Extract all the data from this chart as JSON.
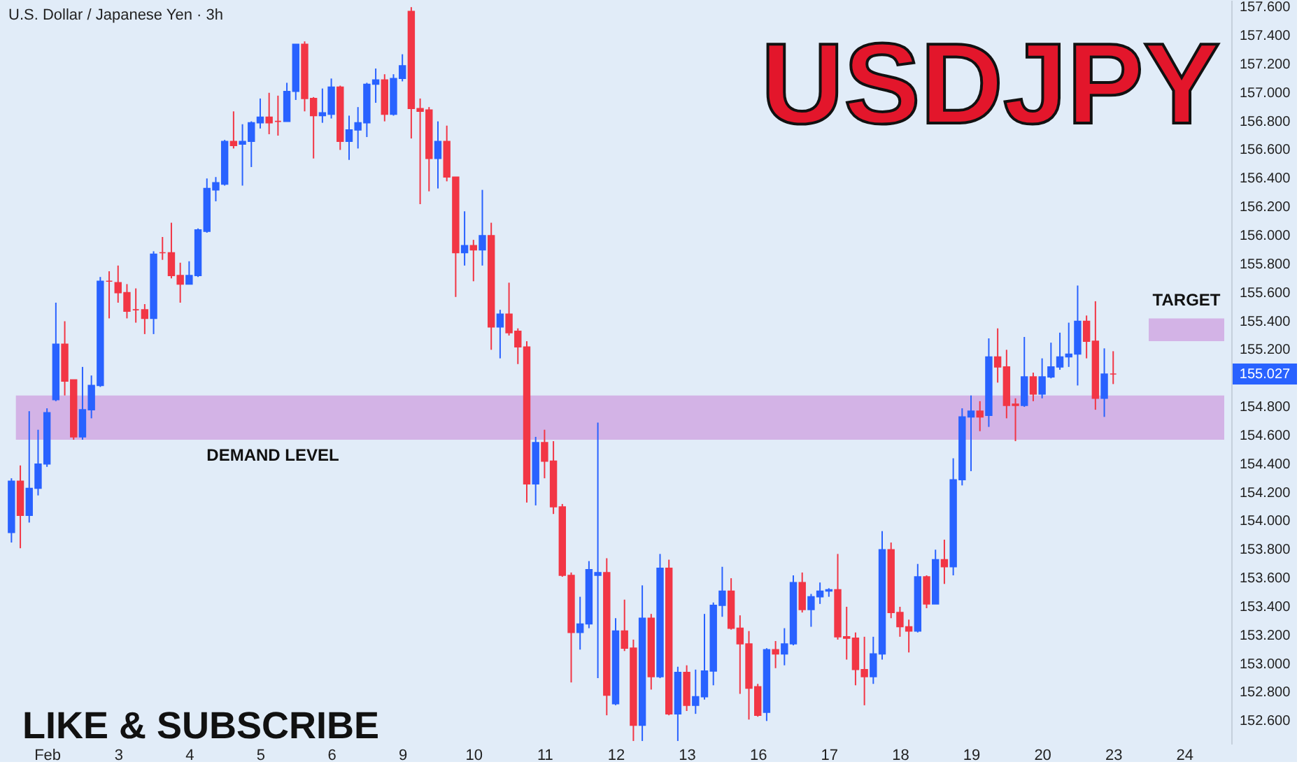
{
  "chart_data": {
    "type": "candlestick",
    "title": "USDJPY",
    "subtitle": "U.S. Dollar / Japanese Yen · 3h",
    "categories": [
      null,
      null,
      null,
      null,
      "Feb",
      null,
      null,
      null,
      null,
      null,
      null,
      null,
      "3",
      null,
      null,
      null,
      null,
      null,
      null,
      null,
      "4",
      null,
      null,
      null,
      null,
      null,
      null,
      null,
      "5",
      null,
      null,
      null,
      null,
      null,
      null,
      null,
      "6",
      null,
      null,
      null,
      null,
      null,
      null,
      null,
      "9",
      null,
      null,
      null,
      null,
      null,
      null,
      null,
      "10",
      null,
      null,
      null,
      null,
      null,
      null,
      null,
      "11",
      null,
      null,
      null,
      null,
      null,
      null,
      null,
      "12",
      null,
      null,
      null,
      null,
      null,
      null,
      null,
      "13",
      null,
      null,
      null,
      null,
      null,
      null,
      null,
      "16",
      null,
      null,
      null,
      null,
      null,
      null,
      null,
      "17",
      null,
      null,
      null,
      null,
      null,
      null,
      null,
      "18",
      null,
      null,
      null,
      null,
      null,
      null,
      null,
      "19",
      null,
      null,
      null,
      null,
      null,
      null,
      null,
      "20",
      null,
      null,
      null,
      null,
      null,
      null,
      null,
      "23",
      null,
      null,
      null,
      null,
      null,
      null,
      null,
      "24",
      null,
      null,
      null,
      null
    ],
    "ohlc": [
      [
        153.92,
        154.3,
        153.85,
        154.28
      ],
      [
        154.28,
        154.39,
        153.81,
        154.04
      ],
      [
        154.04,
        154.77,
        153.99,
        154.23
      ],
      [
        154.23,
        154.64,
        154.18,
        154.4
      ],
      [
        154.4,
        154.79,
        154.38,
        154.76
      ],
      [
        154.85,
        155.53,
        154.84,
        155.24
      ],
      [
        155.24,
        155.4,
        154.88,
        154.98
      ],
      [
        154.99,
        154.99,
        154.57,
        154.59
      ],
      [
        154.59,
        155.08,
        154.57,
        154.78
      ],
      [
        154.78,
        155.02,
        154.72,
        154.95
      ],
      [
        154.95,
        155.71,
        154.94,
        155.68
      ],
      [
        155.68,
        155.75,
        155.42,
        155.68
      ],
      [
        155.67,
        155.79,
        155.53,
        155.6
      ],
      [
        155.6,
        155.66,
        155.42,
        155.47
      ],
      [
        155.48,
        155.63,
        155.39,
        155.48
      ],
      [
        155.48,
        155.52,
        155.31,
        155.42
      ],
      [
        155.42,
        155.89,
        155.31,
        155.87
      ],
      [
        155.88,
        155.99,
        155.83,
        155.88
      ],
      [
        155.88,
        156.09,
        155.7,
        155.72
      ],
      [
        155.72,
        155.81,
        155.53,
        155.66
      ],
      [
        155.66,
        155.82,
        155.66,
        155.72
      ],
      [
        155.72,
        156.05,
        155.71,
        156.04
      ],
      [
        156.03,
        156.4,
        156.02,
        156.33
      ],
      [
        156.32,
        156.41,
        156.24,
        156.37
      ],
      [
        156.36,
        156.67,
        156.35,
        156.66
      ],
      [
        156.66,
        156.87,
        156.61,
        156.63
      ],
      [
        156.64,
        156.78,
        156.35,
        156.66
      ],
      [
        156.66,
        156.8,
        156.48,
        156.79
      ],
      [
        156.79,
        156.96,
        156.75,
        156.83
      ],
      [
        156.83,
        157.0,
        156.71,
        156.79
      ],
      [
        156.8,
        156.98,
        156.7,
        156.8
      ],
      [
        156.8,
        157.07,
        156.8,
        157.01
      ],
      [
        157.01,
        157.34,
        156.95,
        157.34
      ],
      [
        157.34,
        157.36,
        156.87,
        156.96
      ],
      [
        156.96,
        156.97,
        156.54,
        156.84
      ],
      [
        156.84,
        157.03,
        156.79,
        156.86
      ],
      [
        156.85,
        157.1,
        156.82,
        157.04
      ],
      [
        157.04,
        157.05,
        156.6,
        156.66
      ],
      [
        156.66,
        156.84,
        156.53,
        156.74
      ],
      [
        156.74,
        156.9,
        156.61,
        156.79
      ],
      [
        156.79,
        157.07,
        156.69,
        157.06
      ],
      [
        157.06,
        157.17,
        156.93,
        157.09
      ],
      [
        157.09,
        157.13,
        156.8,
        156.85
      ],
      [
        156.85,
        157.13,
        156.84,
        157.1
      ],
      [
        157.1,
        157.27,
        157.08,
        157.19
      ],
      [
        157.57,
        157.6,
        156.68,
        156.89
      ],
      [
        156.89,
        156.96,
        156.22,
        156.87
      ],
      [
        156.88,
        156.9,
        156.31,
        156.54
      ],
      [
        156.54,
        156.8,
        156.33,
        156.66
      ],
      [
        156.66,
        156.77,
        156.38,
        156.41
      ],
      [
        156.41,
        156.41,
        155.57,
        155.88
      ],
      [
        155.88,
        156.17,
        155.79,
        155.93
      ],
      [
        155.93,
        155.97,
        155.68,
        155.9
      ],
      [
        155.9,
        156.32,
        155.79,
        156.0
      ],
      [
        156.0,
        156.09,
        155.2,
        155.36
      ],
      [
        155.36,
        155.48,
        155.14,
        155.45
      ],
      [
        155.45,
        155.67,
        155.3,
        155.32
      ],
      [
        155.33,
        155.35,
        155.1,
        155.22
      ],
      [
        155.22,
        155.26,
        154.13,
        154.26
      ],
      [
        154.26,
        154.59,
        154.11,
        154.55
      ],
      [
        154.55,
        154.64,
        154.3,
        154.42
      ],
      [
        154.42,
        154.56,
        154.05,
        154.1
      ],
      [
        154.1,
        154.12,
        153.61,
        153.62
      ],
      [
        153.62,
        153.64,
        152.87,
        153.22
      ],
      [
        153.22,
        153.47,
        153.1,
        153.28
      ],
      [
        153.28,
        153.72,
        153.25,
        153.66
      ],
      [
        153.62,
        154.69,
        152.9,
        153.64
      ],
      [
        153.64,
        153.74,
        152.64,
        152.78
      ],
      [
        152.72,
        153.32,
        152.71,
        153.23
      ],
      [
        153.23,
        153.45,
        153.09,
        153.11
      ],
      [
        153.11,
        153.17,
        152.46,
        152.57
      ],
      [
        152.57,
        153.55,
        152.46,
        153.32
      ],
      [
        153.32,
        153.35,
        152.82,
        152.91
      ],
      [
        152.91,
        153.77,
        152.9,
        153.67
      ],
      [
        153.67,
        153.73,
        152.64,
        152.65
      ],
      [
        152.65,
        152.98,
        152.46,
        152.94
      ],
      [
        152.94,
        152.99,
        152.67,
        152.71
      ],
      [
        152.71,
        152.96,
        152.65,
        152.77
      ],
      [
        152.77,
        153.35,
        152.75,
        152.95
      ],
      [
        152.95,
        153.43,
        152.85,
        153.41
      ],
      [
        153.41,
        153.68,
        153.33,
        153.51
      ],
      [
        153.51,
        153.6,
        153.24,
        153.25
      ],
      [
        153.25,
        153.34,
        152.79,
        153.14
      ],
      [
        153.14,
        153.23,
        152.61,
        152.83
      ],
      [
        152.84,
        152.86,
        152.63,
        152.64
      ],
      [
        152.66,
        153.11,
        152.6,
        153.1
      ],
      [
        153.1,
        153.16,
        152.97,
        153.07
      ],
      [
        153.07,
        153.25,
        152.99,
        153.14
      ],
      [
        153.14,
        153.62,
        153.13,
        153.57
      ],
      [
        153.57,
        153.64,
        153.36,
        153.38
      ],
      [
        153.38,
        153.49,
        153.26,
        153.47
      ],
      [
        153.47,
        153.57,
        153.42,
        153.51
      ],
      [
        153.51,
        153.53,
        153.47,
        153.52
      ],
      [
        153.52,
        153.77,
        153.17,
        153.19
      ],
      [
        153.19,
        153.4,
        153.03,
        153.18
      ],
      [
        153.18,
        153.22,
        152.85,
        152.96
      ],
      [
        152.96,
        153.19,
        152.71,
        152.91
      ],
      [
        152.91,
        153.19,
        152.86,
        153.07
      ],
      [
        153.07,
        153.93,
        153.03,
        153.8
      ],
      [
        153.8,
        153.85,
        153.32,
        153.36
      ],
      [
        153.36,
        153.4,
        153.19,
        153.26
      ],
      [
        153.26,
        153.31,
        153.08,
        153.23
      ],
      [
        153.23,
        153.7,
        153.22,
        153.61
      ],
      [
        153.61,
        153.62,
        153.39,
        153.42
      ],
      [
        153.42,
        153.8,
        153.42,
        153.73
      ],
      [
        153.73,
        153.87,
        153.56,
        153.68
      ],
      [
        153.68,
        154.44,
        153.62,
        154.29
      ],
      [
        154.29,
        154.79,
        154.25,
        154.73
      ],
      [
        154.73,
        154.88,
        154.35,
        154.77
      ],
      [
        154.77,
        154.84,
        154.63,
        154.73
      ],
      [
        154.74,
        155.28,
        154.66,
        155.15
      ],
      [
        155.15,
        155.35,
        154.97,
        155.08
      ],
      [
        155.08,
        155.2,
        154.72,
        154.81
      ],
      [
        154.82,
        154.86,
        154.56,
        154.81
      ],
      [
        154.81,
        155.29,
        154.8,
        155.01
      ],
      [
        155.01,
        155.04,
        154.84,
        154.89
      ],
      [
        154.89,
        155.14,
        154.86,
        155.01
      ],
      [
        155.01,
        155.25,
        155.0,
        155.08
      ],
      [
        155.08,
        155.32,
        155.06,
        155.15
      ],
      [
        155.15,
        155.39,
        155.08,
        155.17
      ],
      [
        155.17,
        155.65,
        154.95,
        155.4
      ],
      [
        155.4,
        155.44,
        155.14,
        155.26
      ],
      [
        155.26,
        155.54,
        154.78,
        154.86
      ],
      [
        154.86,
        155.21,
        154.73,
        155.03
      ],
      [
        155.03,
        155.19,
        154.96,
        155.03
      ],
      null,
      null,
      null,
      null,
      null,
      null,
      null,
      null,
      null,
      null,
      null,
      null
    ],
    "colors": [
      "#2962ff",
      "#f23645",
      "#2962ff",
      "#2962ff",
      "#2962ff",
      "#2962ff",
      "#f23645",
      "#f23645",
      "#2962ff",
      "#2962ff",
      "#2962ff",
      "#f23645",
      "#f23645",
      "#f23645",
      "#f23645",
      "#f23645",
      "#2962ff",
      "#f23645",
      "#f23645",
      "#f23645",
      "#2962ff",
      "#2962ff",
      "#2962ff",
      "#2962ff",
      "#2962ff",
      "#f23645",
      "#2962ff",
      "#2962ff",
      "#2962ff",
      "#f23645",
      "#f23645",
      "#2962ff",
      "#2962ff",
      "#f23645",
      "#f23645",
      "#2962ff",
      "#2962ff",
      "#f23645",
      "#2962ff",
      "#2962ff",
      "#2962ff",
      "#2962ff",
      "#f23645",
      "#2962ff",
      "#2962ff",
      "#f23645",
      "#f23645",
      "#f23645",
      "#2962ff",
      "#f23645",
      "#f23645",
      "#2962ff",
      "#f23645",
      "#2962ff",
      "#f23645",
      "#2962ff",
      "#f23645",
      "#f23645",
      "#f23645",
      "#2962ff",
      "#f23645",
      "#f23645",
      "#f23645",
      "#f23645",
      "#2962ff",
      "#2962ff",
      "#2962ff",
      "#f23645",
      "#2962ff",
      "#f23645",
      "#f23645",
      "#2962ff",
      "#f23645",
      "#2962ff",
      "#f23645",
      "#2962ff",
      "#f23645",
      "#2962ff",
      "#2962ff",
      "#2962ff",
      "#2962ff",
      "#f23645",
      "#f23645",
      "#f23645",
      "#f23645",
      "#2962ff",
      "#f23645",
      "#2962ff",
      "#2962ff",
      "#f23645",
      "#2962ff",
      "#2962ff",
      "#2962ff",
      "#f23645",
      "#f23645",
      "#f23645",
      "#f23645",
      "#2962ff",
      "#2962ff",
      "#f23645",
      "#f23645",
      "#f23645",
      "#2962ff",
      "#f23645",
      "#2962ff",
      "#f23645",
      "#2962ff",
      "#2962ff",
      "#2962ff",
      "#f23645",
      "#2962ff",
      "#f23645",
      "#f23645",
      "#f23645",
      "#2962ff",
      "#f23645",
      "#2962ff",
      "#2962ff",
      "#2962ff",
      "#2962ff",
      "#2962ff",
      "#f23645",
      "#f23645",
      "#2962ff",
      "#f23645",
      null,
      null,
      null,
      null,
      null,
      null,
      null,
      null,
      null,
      null,
      null,
      null
    ],
    "ylim": [
      152.44,
      157.65
    ],
    "yticks": [
      {
        "value": 152.6,
        "label": "152.600"
      },
      {
        "value": 152.8,
        "label": "152.800"
      },
      {
        "value": 153.0,
        "label": "153.000"
      },
      {
        "value": 153.2,
        "label": "153.200"
      },
      {
        "value": 153.4,
        "label": "153.400"
      },
      {
        "value": 153.6,
        "label": "153.600"
      },
      {
        "value": 153.8,
        "label": "153.800"
      },
      {
        "value": 154.0,
        "label": "154.000"
      },
      {
        "value": 154.2,
        "label": "154.200"
      },
      {
        "value": 154.4,
        "label": "154.400"
      },
      {
        "value": 154.6,
        "label": "154.600"
      },
      {
        "value": 154.8,
        "label": "154.800"
      },
      {
        "value": 155.2,
        "label": "155.200"
      },
      {
        "value": 155.4,
        "label": "155.400"
      },
      {
        "value": 155.6,
        "label": "155.600"
      },
      {
        "value": 155.8,
        "label": "155.800"
      },
      {
        "value": 156.0,
        "label": "156.000"
      },
      {
        "value": 156.2,
        "label": "156.200"
      },
      {
        "value": 156.4,
        "label": "156.400"
      },
      {
        "value": 156.6,
        "label": "156.600"
      },
      {
        "value": 156.8,
        "label": "156.800"
      },
      {
        "value": 157.0,
        "label": "157.000"
      },
      {
        "value": 157.2,
        "label": "157.200"
      },
      {
        "value": 157.4,
        "label": "157.400"
      },
      {
        "value": 157.6,
        "label": "157.600"
      }
    ],
    "bands": [
      {
        "axis": "y",
        "from": 154.57,
        "to": 154.88,
        "label": "DEMAND LEVEL",
        "color": "#d1ade3"
      },
      {
        "axis": "y",
        "from": 155.26,
        "to": 155.42,
        "label": "TARGET",
        "color": "#d1ade3"
      }
    ],
    "annotations": [
      "155.027",
      "LIKE & SUBSCRIBE"
    ],
    "grid": false
  }
}
